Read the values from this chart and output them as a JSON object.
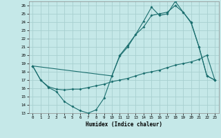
{
  "xlabel": "Humidex (Indice chaleur)",
  "background_color": "#c5e8e8",
  "grid_color": "#a8d0d0",
  "line_color": "#1a6e6e",
  "xlim": [
    -0.5,
    23.5
  ],
  "ylim": [
    13,
    26.5
  ],
  "xticks": [
    0,
    1,
    2,
    3,
    4,
    5,
    6,
    7,
    8,
    9,
    10,
    11,
    12,
    13,
    14,
    15,
    16,
    17,
    18,
    19,
    20,
    21,
    22,
    23
  ],
  "yticks": [
    13,
    14,
    15,
    16,
    17,
    18,
    19,
    20,
    21,
    22,
    23,
    24,
    25,
    26
  ],
  "line1_x": [
    0,
    1,
    2,
    3,
    4,
    5,
    6,
    7,
    8,
    9,
    10,
    11,
    12,
    13,
    14,
    15,
    16,
    17,
    18,
    19,
    20,
    21,
    22,
    23
  ],
  "line1_y": [
    18.7,
    17.0,
    16.1,
    15.6,
    14.4,
    13.8,
    13.3,
    13.0,
    13.4,
    14.8,
    17.5,
    19.9,
    21.0,
    22.5,
    23.4,
    24.8,
    25.0,
    25.2,
    26.0,
    25.2,
    23.9,
    21.0,
    17.5,
    17.0
  ],
  "line2_x": [
    0,
    1,
    2,
    3,
    4,
    5,
    6,
    7,
    8,
    9,
    10,
    11,
    12,
    13,
    14,
    15,
    16,
    17,
    18,
    19,
    20,
    21,
    22,
    23
  ],
  "line2_y": [
    18.7,
    17.0,
    16.2,
    15.9,
    15.8,
    15.9,
    15.9,
    16.1,
    16.3,
    16.5,
    16.8,
    17.0,
    17.2,
    17.5,
    17.8,
    18.0,
    18.2,
    18.5,
    18.8,
    19.0,
    19.2,
    19.5,
    20.0,
    17.0
  ],
  "line3_x": [
    0,
    10,
    11,
    12,
    13,
    14,
    15,
    16,
    17,
    18,
    19,
    20,
    21,
    22,
    23
  ],
  "line3_y": [
    18.7,
    17.5,
    20.0,
    21.2,
    22.5,
    24.1,
    25.8,
    24.8,
    25.0,
    26.5,
    25.2,
    24.0,
    21.0,
    17.5,
    17.0
  ]
}
